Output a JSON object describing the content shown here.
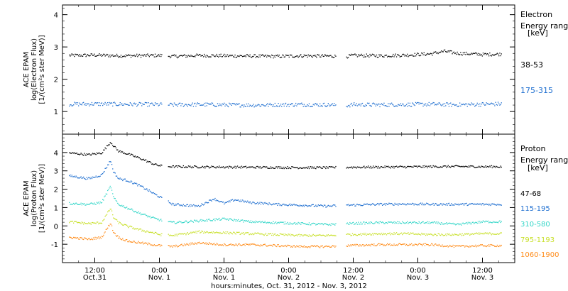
{
  "chart_data": [
    {
      "type": "scatter",
      "panel": "electron",
      "ylabel_lines": [
        "ACE EPAM",
        "log(Electron Flux)",
        "[1/(cm²s ster MeV)]"
      ],
      "legend_title_lines": [
        "Electron",
        "Energy range",
        "[keV]"
      ],
      "ylim": [
        0.3,
        4.3
      ],
      "yticks": [
        1,
        2,
        3,
        4
      ],
      "xlim": [
        -0.25,
        3.25
      ],
      "data_gaps": [
        [
          0.52,
          0.565
        ],
        [
          1.865,
          1.945
        ]
      ],
      "series": [
        {
          "name": "38-53",
          "color": "#000000",
          "x": [
            -0.2,
            0.0,
            0.2,
            0.5,
            0.6,
            0.8,
            1.0,
            1.2,
            1.4,
            1.6,
            1.8,
            1.95,
            2.0,
            2.2,
            2.4,
            2.6,
            2.7,
            2.8,
            3.0,
            3.15
          ],
          "y": [
            2.75,
            2.76,
            2.74,
            2.75,
            2.72,
            2.75,
            2.74,
            2.73,
            2.72,
            2.74,
            2.73,
            2.72,
            2.75,
            2.74,
            2.76,
            2.8,
            2.88,
            2.82,
            2.78,
            2.79
          ]
        },
        {
          "name": "175-315",
          "color": "#1f6fd0",
          "x": [
            -0.2,
            0.0,
            0.2,
            0.5,
            0.6,
            0.8,
            1.0,
            1.2,
            1.4,
            1.6,
            1.8,
            1.95,
            2.0,
            2.2,
            2.4,
            2.6,
            2.8,
            3.0,
            3.15
          ],
          "y": [
            1.24,
            1.25,
            1.24,
            1.23,
            1.22,
            1.23,
            1.22,
            1.21,
            1.22,
            1.23,
            1.22,
            1.2,
            1.23,
            1.22,
            1.23,
            1.24,
            1.22,
            1.24,
            1.25
          ]
        }
      ]
    },
    {
      "type": "scatter",
      "panel": "proton",
      "ylabel_lines": [
        "ACE EPAM",
        "log(Proton Flux)",
        "[1/(cm²s ster MeV)]"
      ],
      "legend_title_lines": [
        "Proton",
        "Energy range",
        "[keV]"
      ],
      "ylim": [
        -2.0,
        5.0
      ],
      "yticks": [
        -1,
        0,
        1,
        2,
        3,
        4
      ],
      "xlim": [
        -0.25,
        3.25
      ],
      "xticks": [
        0.0,
        0.5,
        1.0,
        1.5,
        2.0,
        2.5,
        3.0,
        3.5
      ],
      "xtick_labels": [
        [
          "12:00",
          "Oct.31"
        ],
        [
          "0:00",
          "Nov. 1"
        ],
        [
          "12:00",
          "Nov. 1"
        ],
        [
          "0:00",
          "Nov. 2"
        ],
        [
          "12:00",
          "Nov. 2"
        ],
        [
          "0:00",
          "Nov. 3"
        ],
        [
          "12:00",
          "Nov. 3"
        ]
      ],
      "xlabel": "hours:minutes, Oct. 31, 2012 - Nov.  3, 2012",
      "data_gaps": [
        [
          0.52,
          0.565
        ],
        [
          1.865,
          1.945
        ]
      ],
      "series": [
        {
          "name": "47-68",
          "color": "#000000",
          "x": [
            -0.2,
            -0.05,
            0.05,
            0.12,
            0.14,
            0.18,
            0.25,
            0.35,
            0.45,
            0.5,
            0.6,
            0.8,
            1.0,
            1.2,
            1.4,
            1.6,
            1.8,
            1.95,
            2.2,
            2.4,
            2.6,
            2.8,
            3.0,
            3.15
          ],
          "y": [
            4.0,
            3.9,
            4.0,
            4.6,
            4.4,
            4.1,
            3.95,
            3.7,
            3.4,
            3.3,
            3.25,
            3.24,
            3.23,
            3.22,
            3.21,
            3.2,
            3.2,
            3.22,
            3.23,
            3.24,
            3.25,
            3.26,
            3.25,
            3.25
          ]
        },
        {
          "name": "115-195",
          "color": "#1f6fd0",
          "x": [
            -0.2,
            -0.05,
            0.05,
            0.12,
            0.14,
            0.18,
            0.25,
            0.35,
            0.45,
            0.5,
            0.6,
            0.8,
            0.92,
            1.0,
            1.08,
            1.2,
            1.4,
            1.6,
            1.8,
            1.95,
            2.2,
            2.4,
            2.6,
            2.8,
            3.0,
            3.15
          ],
          "y": [
            2.75,
            2.6,
            2.8,
            3.6,
            3.0,
            2.6,
            2.5,
            2.2,
            1.8,
            1.6,
            1.2,
            1.1,
            1.5,
            1.25,
            1.45,
            1.3,
            1.2,
            1.15,
            1.1,
            1.15,
            1.2,
            1.22,
            1.2,
            1.2,
            1.2,
            1.2
          ]
        },
        {
          "name": "310-580",
          "color": "#33d6c8",
          "x": [
            -0.2,
            -0.05,
            0.05,
            0.12,
            0.14,
            0.18,
            0.25,
            0.35,
            0.45,
            0.5,
            0.6,
            0.8,
            1.0,
            1.2,
            1.4,
            1.6,
            1.8,
            1.95,
            2.2,
            2.4,
            2.6,
            2.8,
            3.0,
            3.15
          ],
          "y": [
            1.25,
            1.2,
            1.3,
            2.2,
            1.6,
            1.2,
            1.0,
            0.7,
            0.45,
            0.35,
            0.2,
            0.3,
            0.4,
            0.25,
            0.2,
            0.15,
            0.1,
            0.15,
            0.2,
            0.2,
            0.2,
            0.1,
            0.25,
            0.25
          ]
        },
        {
          "name": "795-1193",
          "color": "#c8e02a",
          "x": [
            -0.2,
            -0.05,
            0.05,
            0.12,
            0.14,
            0.18,
            0.25,
            0.35,
            0.45,
            0.5,
            0.6,
            0.8,
            1.0,
            1.2,
            1.4,
            1.6,
            1.8,
            1.95,
            2.2,
            2.4,
            2.6,
            2.8,
            3.0,
            3.15
          ],
          "y": [
            0.25,
            0.15,
            0.2,
            1.0,
            0.5,
            0.2,
            0.0,
            -0.2,
            -0.35,
            -0.45,
            -0.5,
            -0.3,
            -0.35,
            -0.4,
            -0.45,
            -0.5,
            -0.5,
            -0.45,
            -0.4,
            -0.4,
            -0.45,
            -0.45,
            -0.4,
            -0.4
          ]
        },
        {
          "name": "1060-1900",
          "color": "#ff8c1a",
          "x": [
            -0.2,
            -0.05,
            0.05,
            0.12,
            0.14,
            0.18,
            0.25,
            0.35,
            0.45,
            0.5,
            0.6,
            0.8,
            1.0,
            1.2,
            1.4,
            1.6,
            1.8,
            1.95,
            2.2,
            2.4,
            2.6,
            2.8,
            3.0,
            3.15
          ],
          "y": [
            -0.6,
            -0.7,
            -0.6,
            0.2,
            -0.3,
            -0.6,
            -0.8,
            -0.9,
            -1.0,
            -1.05,
            -1.1,
            -0.9,
            -1.0,
            -1.0,
            -1.05,
            -1.1,
            -1.1,
            -1.05,
            -1.0,
            -1.0,
            -1.0,
            -1.1,
            -1.05,
            -1.05
          ]
        }
      ]
    }
  ]
}
